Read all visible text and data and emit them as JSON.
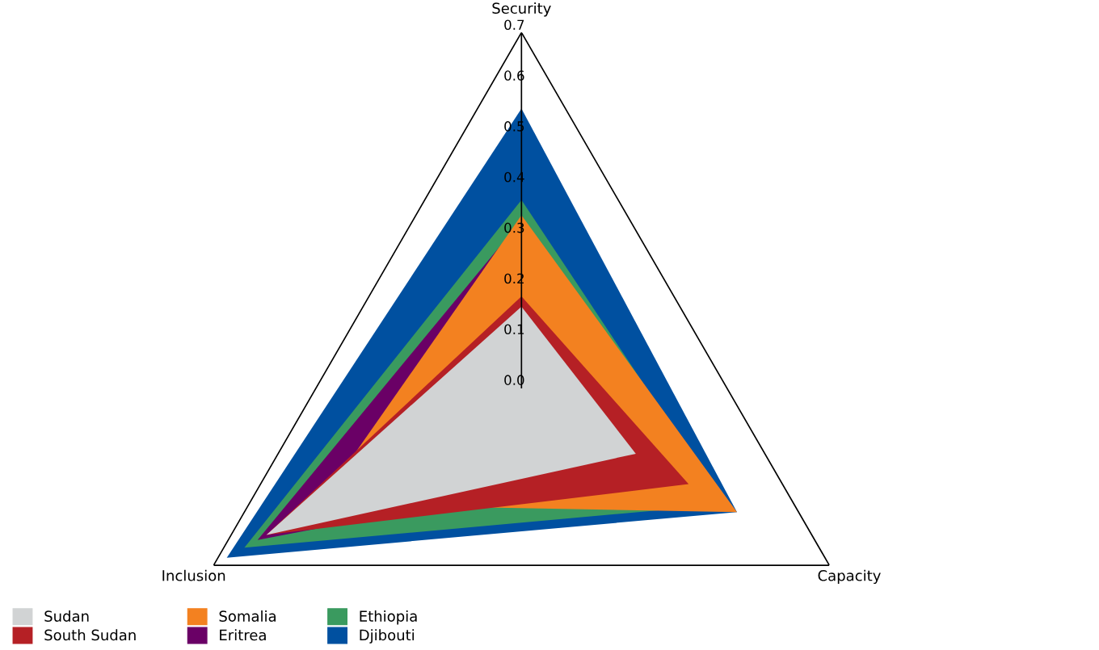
{
  "chart_data": {
    "type": "radar",
    "categories": [
      "Security",
      "Capacity",
      "Inclusion"
    ],
    "ylim": [
      0,
      0.7
    ],
    "yticks": [
      {
        "value": 0,
        "label": "0.0"
      },
      0.1,
      0.2,
      0.3,
      0.4,
      0.5,
      0.6,
      0.7
    ],
    "grid": false,
    "legend": "bottom left",
    "series": [
      {
        "name": "Sudan",
        "color": "#d1d3d4",
        "values": [
          0.16,
          0.26,
          0.58
        ]
      },
      {
        "name": "South Sudan",
        "color": "#b52025",
        "values": [
          0.18,
          0.38,
          0.58
        ]
      },
      {
        "name": "Somalia",
        "color": "#f38120",
        "values": [
          0.34,
          0.49,
          0.46
        ]
      },
      {
        "name": "Eritrea",
        "color": "#6a0066",
        "values": [
          0.33,
          0.3,
          0.6
        ]
      },
      {
        "name": "Ethiopia",
        "color": "#3a9a5f",
        "values": [
          0.37,
          0.46,
          0.63
        ]
      },
      {
        "name": "Djibouti",
        "color": "#0050a0",
        "values": [
          0.55,
          0.49,
          0.67
        ]
      }
    ]
  }
}
